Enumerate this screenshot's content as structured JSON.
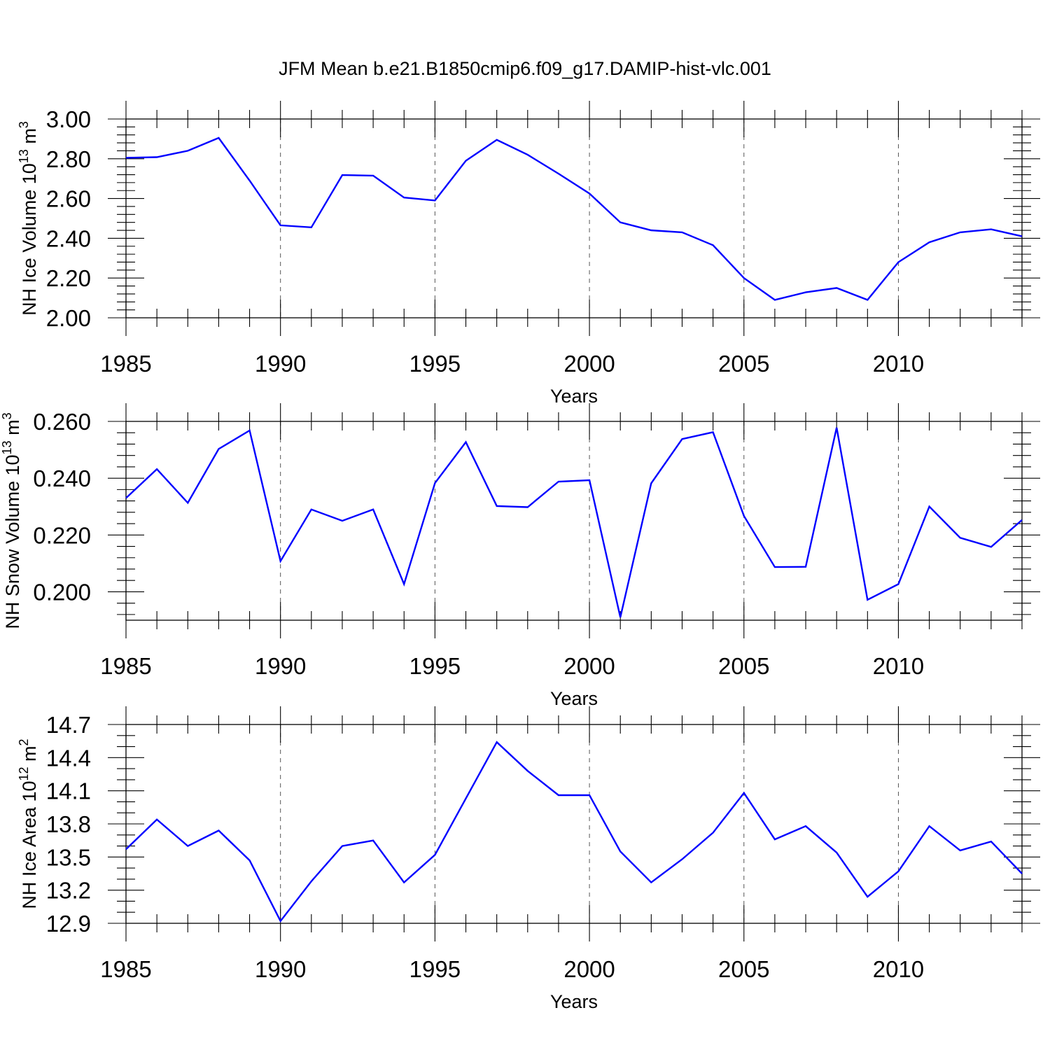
{
  "title": "JFM Mean b.e21.B1850cmip6.f09_g17.DAMIP-hist-vlc.001",
  "colors": {
    "series": "#0000ff",
    "axes": "#000000",
    "grid": "#555555"
  },
  "chart_data": [
    {
      "type": "line",
      "ylabel": "NH Ice Volume 10",
      "ylabel_exponent": "13",
      "ylabel_unit": "m",
      "ylabel_unit_exponent": "3",
      "xlabel": "Years",
      "xlim": [
        1985,
        2014
      ],
      "ylim": [
        2.0,
        3.0
      ],
      "yticks": [
        2.0,
        2.2,
        2.4,
        2.6,
        2.8,
        3.0
      ],
      "ytick_labels": [
        "2.00",
        "2.20",
        "2.40",
        "2.60",
        "2.80",
        "3.00"
      ],
      "xticks": [
        1985,
        1990,
        1995,
        2000,
        2005,
        2010
      ],
      "xtick_labels": [
        "1985",
        "1990",
        "1995",
        "2000",
        "2005",
        "2010"
      ],
      "grid": "vertical dashed at major x ticks",
      "x": [
        1985,
        1986,
        1987,
        1988,
        1989,
        1990,
        1991,
        1992,
        1993,
        1994,
        1995,
        1996,
        1997,
        1998,
        1999,
        2000,
        2001,
        2002,
        2003,
        2004,
        2005,
        2006,
        2007,
        2008,
        2009,
        2010,
        2011,
        2012,
        2013,
        2014
      ],
      "values": [
        2.805,
        2.808,
        2.84,
        2.905,
        2.69,
        2.465,
        2.455,
        2.718,
        2.715,
        2.605,
        2.59,
        2.79,
        2.895,
        2.82,
        2.725,
        2.625,
        2.48,
        2.44,
        2.43,
        2.365,
        2.2,
        2.09,
        2.128,
        2.15,
        2.09,
        2.28,
        2.38,
        2.43,
        2.445,
        2.41
      ]
    },
    {
      "type": "line",
      "ylabel": "NH Snow Volume 10",
      "ylabel_exponent": "13",
      "ylabel_unit": "m",
      "ylabel_unit_exponent": "3",
      "xlabel": "Years",
      "xlim": [
        1985,
        2014
      ],
      "ylim": [
        0.19,
        0.26
      ],
      "yticks": [
        0.2,
        0.22,
        0.24,
        0.26
      ],
      "ytick_labels": [
        "0.200",
        "0.220",
        "0.240",
        "0.260"
      ],
      "xticks": [
        1985,
        1990,
        1995,
        2000,
        2005,
        2010
      ],
      "xtick_labels": [
        "1985",
        "1990",
        "1995",
        "2000",
        "2005",
        "2010"
      ],
      "grid": "vertical dashed at major x ticks",
      "x": [
        1985,
        1986,
        1987,
        1988,
        1989,
        1990,
        1991,
        1992,
        1993,
        1994,
        1995,
        1996,
        1997,
        1998,
        1999,
        2000,
        2001,
        2002,
        2003,
        2004,
        2005,
        2006,
        2007,
        2008,
        2009,
        2010,
        2011,
        2012,
        2013,
        2014
      ],
      "values": [
        0.233,
        0.2432,
        0.2313,
        0.2503,
        0.2568,
        0.2108,
        0.229,
        0.225,
        0.229,
        0.2027,
        0.2383,
        0.2527,
        0.2302,
        0.2298,
        0.2388,
        0.2393,
        0.191,
        0.2382,
        0.2538,
        0.2562,
        0.2267,
        0.2087,
        0.2088,
        0.2578,
        0.1972,
        0.2027,
        0.23,
        0.219,
        0.2158,
        0.2253
      ]
    },
    {
      "type": "line",
      "ylabel": "NH Ice Area 10",
      "ylabel_exponent": "12",
      "ylabel_unit": "m",
      "ylabel_unit_exponent": "2",
      "xlabel": "Years",
      "xlim": [
        1985,
        2014
      ],
      "ylim": [
        12.9,
        14.7
      ],
      "yticks": [
        12.9,
        13.2,
        13.5,
        13.8,
        14.1,
        14.4,
        14.7
      ],
      "ytick_labels": [
        "12.9",
        "13.2",
        "13.5",
        "13.8",
        "14.1",
        "14.4",
        "14.7"
      ],
      "xticks": [
        1985,
        1990,
        1995,
        2000,
        2005,
        2010
      ],
      "xtick_labels": [
        "1985",
        "1990",
        "1995",
        "2000",
        "2005",
        "2010"
      ],
      "grid": "vertical dashed at major x ticks",
      "x": [
        1985,
        1986,
        1987,
        1988,
        1989,
        1990,
        1991,
        1992,
        1993,
        1994,
        1995,
        1996,
        1997,
        1998,
        1999,
        2000,
        2001,
        2002,
        2003,
        2004,
        2005,
        2006,
        2007,
        2008,
        2009,
        2010,
        2011,
        2012,
        2013,
        2014
      ],
      "values": [
        13.57,
        13.84,
        13.6,
        13.74,
        13.47,
        12.92,
        13.28,
        13.6,
        13.65,
        13.27,
        13.52,
        14.03,
        14.54,
        14.28,
        14.06,
        14.06,
        13.55,
        13.27,
        13.48,
        13.72,
        14.08,
        13.66,
        13.78,
        13.54,
        13.14,
        13.37,
        13.78,
        13.56,
        13.64,
        13.35
      ]
    }
  ]
}
